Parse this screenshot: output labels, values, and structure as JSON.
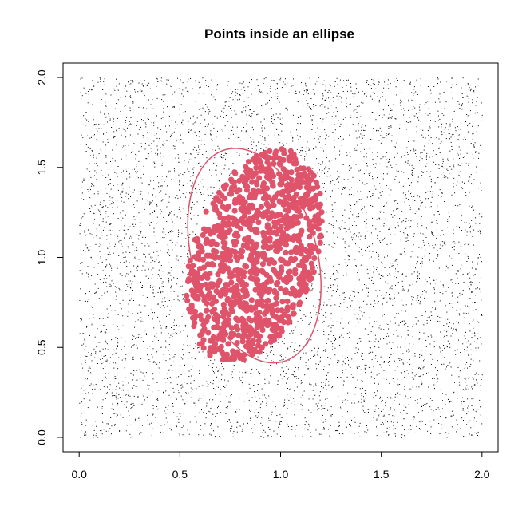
{
  "chart_data": {
    "type": "scatter",
    "title": "Points inside an ellipse",
    "xlabel": "",
    "ylabel": "",
    "xlim": [
      -0.08,
      2.08
    ],
    "ylim": [
      -0.08,
      2.08
    ],
    "x_ticks": [
      0.0,
      0.5,
      1.0,
      1.5,
      2.0
    ],
    "y_ticks": [
      0.0,
      0.5,
      1.0,
      1.5,
      2.0
    ],
    "x_tick_labels": [
      "0.0",
      "0.5",
      "1.0",
      "1.5",
      "2.0"
    ],
    "y_tick_labels": [
      "0.0",
      "0.5",
      "1.0",
      "1.5",
      "2.0"
    ],
    "grid": false,
    "legend": "none",
    "ellipse": {
      "center": [
        0.87,
        1.01
      ],
      "semi_axis_x": 0.31,
      "semi_axis_y": 0.61,
      "rotation_deg": 15,
      "color": "#DF536B"
    },
    "series": [
      {
        "role": "points-outside",
        "color": "#000000",
        "marker": "pixel",
        "x_range": [
          0,
          2
        ],
        "y_range": [
          0,
          2
        ],
        "approx_count": 6000
      },
      {
        "role": "points-inside",
        "color": "#DF536B",
        "marker": "filled-circle",
        "approx_count": 1100
      }
    ]
  }
}
